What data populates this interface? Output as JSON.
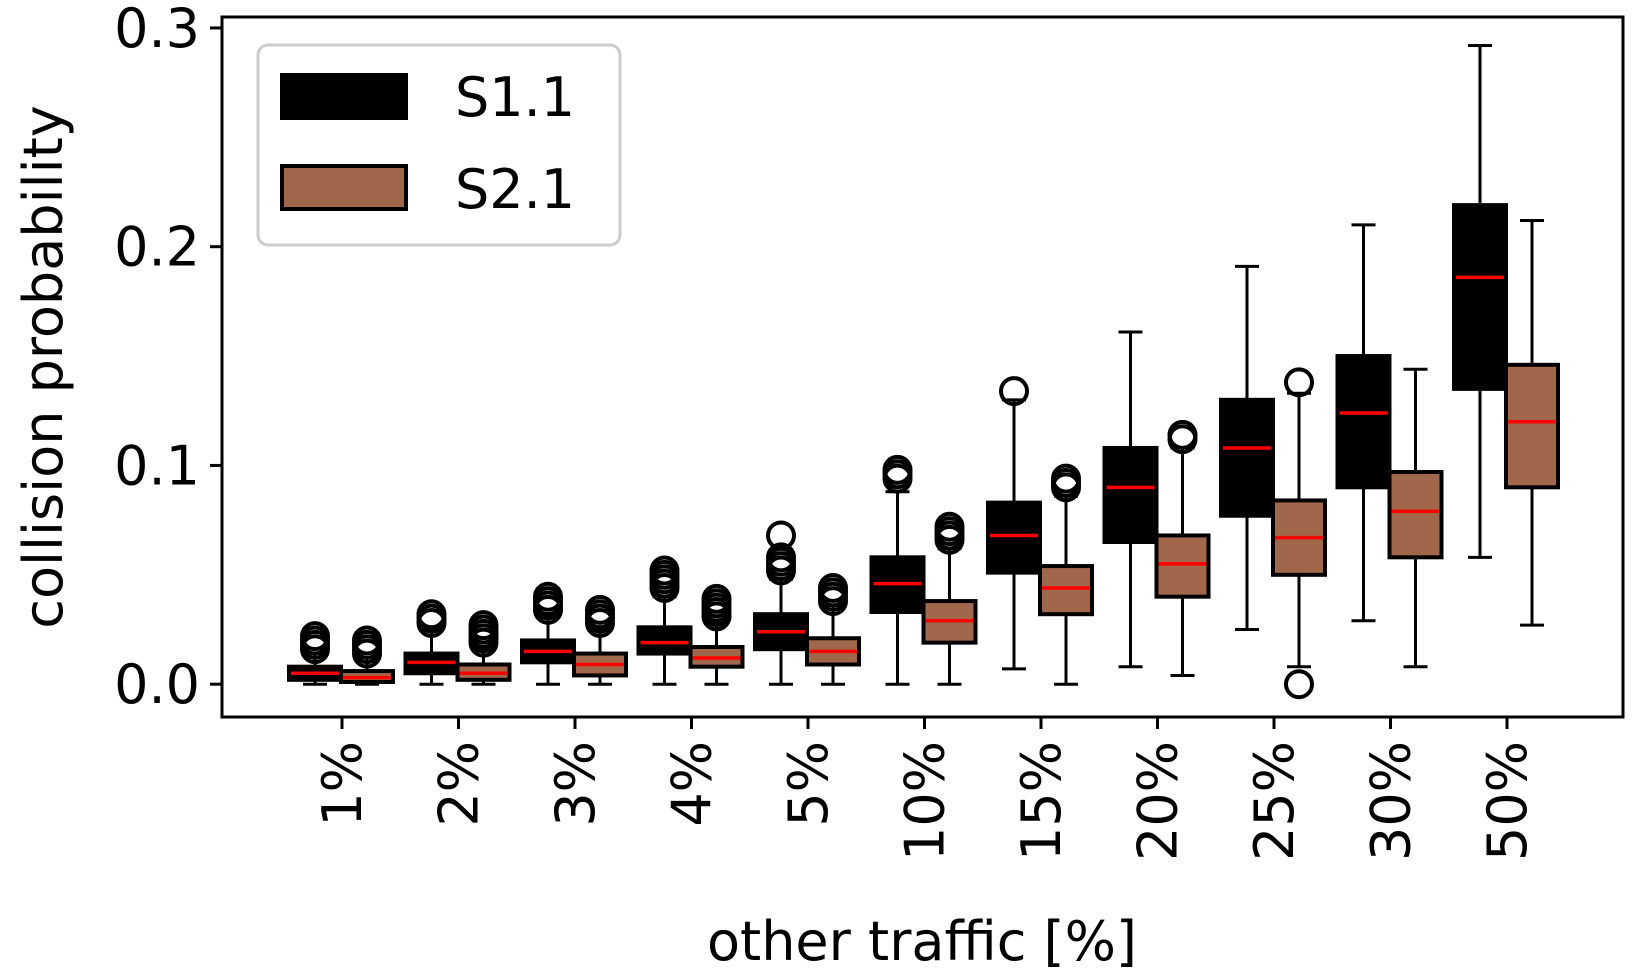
{
  "chart_data": {
    "type": "boxplot",
    "title": "",
    "xlabel": "other traffic [%]",
    "ylabel": "collision probability",
    "ylim": [
      -0.015,
      0.305
    ],
    "yticks": [
      0.0,
      0.1,
      0.2,
      0.3
    ],
    "ytick_labels": [
      "0.0",
      "0.1",
      "0.2",
      "0.3"
    ],
    "categories": [
      "1%",
      "2%",
      "3%",
      "4%",
      "5%",
      "10%",
      "15%",
      "20%",
      "25%",
      "30%",
      "50%"
    ],
    "legend_position": "top-left",
    "median_color": "#ff0000",
    "series": [
      {
        "name": "S1.1",
        "color": "#000000",
        "boxes": [
          {
            "whislo": 0.0,
            "q1": 0.002,
            "med": 0.005,
            "q3": 0.008,
            "whishi": 0.014,
            "fliers": [
              0.016,
              0.018,
              0.02,
              0.022
            ]
          },
          {
            "whislo": 0.0,
            "q1": 0.005,
            "med": 0.01,
            "q3": 0.014,
            "whishi": 0.025,
            "fliers": [
              0.028,
              0.03,
              0.032
            ]
          },
          {
            "whislo": 0.0,
            "q1": 0.01,
            "med": 0.015,
            "q3": 0.02,
            "whishi": 0.031,
            "fliers": [
              0.034,
              0.036,
              0.038,
              0.04
            ]
          },
          {
            "whislo": 0.0,
            "q1": 0.014,
            "med": 0.019,
            "q3": 0.026,
            "whishi": 0.04,
            "fliers": [
              0.044,
              0.046,
              0.048,
              0.05,
              0.052
            ]
          },
          {
            "whislo": 0.0,
            "q1": 0.016,
            "med": 0.024,
            "q3": 0.032,
            "whishi": 0.048,
            "fliers": [
              0.052,
              0.054,
              0.056,
              0.058,
              0.068
            ]
          },
          {
            "whislo": 0.0,
            "q1": 0.033,
            "med": 0.046,
            "q3": 0.058,
            "whishi": 0.088,
            "fliers": [
              0.094,
              0.096,
              0.098
            ]
          },
          {
            "whislo": 0.007,
            "q1": 0.051,
            "med": 0.068,
            "q3": 0.083,
            "whishi": 0.13,
            "fliers": [
              0.134
            ]
          },
          {
            "whislo": 0.008,
            "q1": 0.065,
            "med": 0.09,
            "q3": 0.108,
            "whishi": 0.161,
            "fliers": []
          },
          {
            "whislo": 0.025,
            "q1": 0.077,
            "med": 0.108,
            "q3": 0.13,
            "whishi": 0.191,
            "fliers": []
          },
          {
            "whislo": 0.029,
            "q1": 0.09,
            "med": 0.124,
            "q3": 0.15,
            "whishi": 0.21,
            "fliers": []
          },
          {
            "whislo": 0.058,
            "q1": 0.135,
            "med": 0.186,
            "q3": 0.219,
            "whishi": 0.292,
            "fliers": []
          }
        ]
      },
      {
        "name": "S2.1",
        "color": "#a0674a",
        "boxes": [
          {
            "whislo": 0.0,
            "q1": 0.001,
            "med": 0.003,
            "q3": 0.006,
            "whishi": 0.012,
            "fliers": [
              0.014,
              0.016,
              0.018,
              0.02
            ]
          },
          {
            "whislo": 0.0,
            "q1": 0.002,
            "med": 0.005,
            "q3": 0.009,
            "whishi": 0.016,
            "fliers": [
              0.019,
              0.021,
              0.023,
              0.025,
              0.027
            ]
          },
          {
            "whislo": 0.0,
            "q1": 0.004,
            "med": 0.009,
            "q3": 0.014,
            "whishi": 0.025,
            "fliers": [
              0.028,
              0.03,
              0.032,
              0.034
            ]
          },
          {
            "whislo": 0.0,
            "q1": 0.008,
            "med": 0.012,
            "q3": 0.017,
            "whishi": 0.028,
            "fliers": [
              0.031,
              0.033,
              0.035,
              0.037,
              0.039
            ]
          },
          {
            "whislo": 0.0,
            "q1": 0.009,
            "med": 0.015,
            "q3": 0.021,
            "whishi": 0.036,
            "fliers": [
              0.038,
              0.04,
              0.042,
              0.044
            ]
          },
          {
            "whislo": 0.0,
            "q1": 0.019,
            "med": 0.029,
            "q3": 0.038,
            "whishi": 0.062,
            "fliers": [
              0.066,
              0.068,
              0.07,
              0.072
            ]
          },
          {
            "whislo": 0.0,
            "q1": 0.032,
            "med": 0.044,
            "q3": 0.054,
            "whishi": 0.086,
            "fliers": [
              0.09,
              0.092,
              0.094
            ]
          },
          {
            "whislo": 0.004,
            "q1": 0.04,
            "med": 0.055,
            "q3": 0.068,
            "whishi": 0.108,
            "fliers": [
              0.112,
              0.114
            ]
          },
          {
            "whislo": 0.008,
            "q1": 0.05,
            "med": 0.067,
            "q3": 0.084,
            "whishi": 0.133,
            "fliers": [
              0.0,
              0.138
            ]
          },
          {
            "whislo": 0.008,
            "q1": 0.058,
            "med": 0.079,
            "q3": 0.097,
            "whishi": 0.144,
            "fliers": []
          },
          {
            "whislo": 0.027,
            "q1": 0.09,
            "med": 0.12,
            "q3": 0.146,
            "whishi": 0.212,
            "fliers": []
          }
        ]
      }
    ]
  }
}
